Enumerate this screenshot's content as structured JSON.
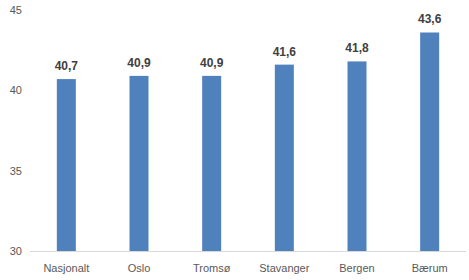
{
  "chart_data": {
    "type": "bar",
    "categories": [
      "Nasjonalt",
      "Oslo",
      "Tromsø",
      "Stavanger",
      "Bergen",
      "Bærum"
    ],
    "values": [
      40.7,
      40.9,
      40.9,
      41.6,
      41.8,
      43.6
    ],
    "value_labels": [
      "40,7",
      "40,9",
      "40,9",
      "41,6",
      "41,8",
      "43,6"
    ],
    "color": "#4f81bd",
    "ylim": [
      30,
      45
    ],
    "yticks": [
      30,
      35,
      40,
      45
    ],
    "grid": false,
    "data_labels": true
  }
}
